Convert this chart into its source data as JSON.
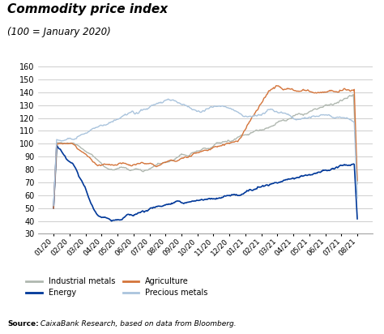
{
  "title": "Commodity price index",
  "subtitle": "(100 = January 2020)",
  "source_bold": "Source:",
  "source_italic": " CaixaBank Research, based on data from Bloomberg.",
  "ylim": [
    30,
    165
  ],
  "yticks": [
    30,
    40,
    50,
    60,
    70,
    80,
    90,
    100,
    110,
    120,
    130,
    140,
    150,
    160
  ],
  "colors": {
    "industrial_metals": "#b0b8b0",
    "energy": "#003899",
    "agriculture": "#d4743a",
    "precious_metals": "#aac4dd"
  },
  "legend": [
    {
      "label": "Industrial metals",
      "color": "#b0b8b0"
    },
    {
      "label": "Energy",
      "color": "#003899"
    },
    {
      "label": "Agriculture",
      "color": "#d4743a"
    },
    {
      "label": "Precious metals",
      "color": "#aac4dd"
    }
  ],
  "x_labels": [
    "01/20",
    "02/20",
    "03/20",
    "04/20",
    "05/20",
    "06/20",
    "07/20",
    "08/20",
    "09/20",
    "10/20",
    "11/20",
    "12/20",
    "01/21",
    "02/21",
    "03/21",
    "04/21",
    "05/21",
    "06/21",
    "07/21",
    "08/21"
  ]
}
